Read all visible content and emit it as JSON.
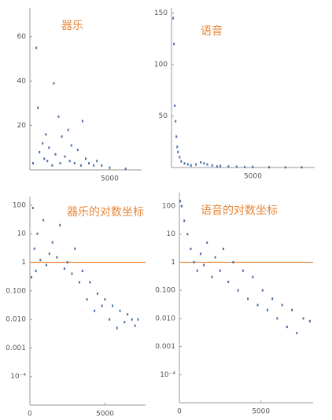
{
  "chart_data": [
    {
      "type": "scatter",
      "title": "器乐",
      "log_y": false,
      "color": "#4a6fa5",
      "x": [
        200,
        400,
        500,
        600,
        800,
        900,
        1000,
        1100,
        1200,
        1400,
        1500,
        1600,
        1800,
        1900,
        2000,
        2200,
        2400,
        2500,
        2600,
        2800,
        3000,
        3200,
        3300,
        3500,
        3700,
        4000,
        4200,
        4500,
        5000,
        6000
      ],
      "values": [
        3,
        55,
        28,
        8,
        12,
        5,
        16,
        4,
        10,
        2,
        39,
        7,
        24,
        3,
        15,
        6,
        18,
        4,
        11,
        3,
        9,
        2,
        22,
        5,
        3,
        2,
        4,
        2,
        1,
        0.5
      ],
      "xlim": [
        0,
        7000
      ],
      "xticks": [
        5000
      ],
      "ylim": [
        0,
        73
      ],
      "yticks": [
        20,
        40,
        60
      ]
    },
    {
      "type": "scatter",
      "title": "语音",
      "log_y": false,
      "color": "#4a6fa5",
      "x": [
        100,
        150,
        200,
        250,
        300,
        350,
        400,
        500,
        600,
        800,
        1000,
        1200,
        1500,
        1800,
        2000,
        2200,
        2500,
        2800,
        3000,
        3500,
        4000,
        4500,
        5000,
        6000,
        7000,
        8000
      ],
      "values": [
        145,
        120,
        60,
        45,
        30,
        20,
        15,
        10,
        6,
        4,
        3,
        2,
        3,
        5,
        4,
        3,
        2,
        1,
        1.5,
        1,
        0.8,
        0.5,
        0.4,
        0.3,
        0.2,
        0.2
      ],
      "xlim": [
        0,
        8800
      ],
      "xticks": [
        5000
      ],
      "ylim": [
        0,
        155
      ],
      "yticks": [
        50,
        100,
        150
      ]
    },
    {
      "type": "scatter",
      "title": "器乐的对数坐标",
      "log_y": true,
      "color": "#4a6fa5",
      "hline": 1,
      "hline_color": "#e8873a",
      "x": [
        100,
        200,
        300,
        400,
        500,
        700,
        900,
        1100,
        1300,
        1500,
        1800,
        2000,
        2300,
        2500,
        2800,
        3000,
        3300,
        3500,
        3800,
        4000,
        4300,
        4500,
        4800,
        5000,
        5300,
        5500,
        5800,
        6000,
        6300,
        6500,
        6800,
        7000,
        7200
      ],
      "values": [
        0.3,
        80,
        3,
        0.5,
        10,
        1.2,
        30,
        0.8,
        2,
        5,
        1.5,
        20,
        0.6,
        1,
        0.4,
        3,
        0.2,
        0.5,
        0.05,
        0.2,
        0.02,
        0.08,
        0.03,
        0.05,
        0.01,
        0.03,
        0.005,
        0.02,
        0.008,
        0.015,
        0.01,
        0.006,
        0.01
      ],
      "xlim": [
        0,
        7700
      ],
      "xticks": [
        0,
        5000
      ],
      "ylim": [
        1e-05,
        200
      ],
      "yticks": [
        100,
        10,
        1,
        {
          "value": 0.1,
          "label": "0.100"
        },
        {
          "value": 0.01,
          "label": "0.010"
        },
        0.001,
        {
          "value": 0.0001,
          "label": "10⁻⁴"
        }
      ]
    },
    {
      "type": "scatter",
      "title": "语音的对数坐标",
      "log_y": true,
      "color": "#4a6fa5",
      "hline": 1,
      "hline_color": "#e8873a",
      "x": [
        50,
        150,
        300,
        500,
        700,
        900,
        1100,
        1300,
        1500,
        1700,
        2000,
        2200,
        2500,
        2700,
        3000,
        3300,
        3600,
        3900,
        4200,
        4500,
        4800,
        5100,
        5400,
        5700,
        6000,
        6300,
        6600,
        6900,
        7200,
        7600,
        8000
      ],
      "values": [
        150,
        100,
        30,
        10,
        3,
        1,
        0.5,
        2,
        0.8,
        5,
        0.3,
        1.5,
        0.5,
        3,
        0.2,
        1,
        0.1,
        0.5,
        0.05,
        0.3,
        0.03,
        0.1,
        0.02,
        0.05,
        0.01,
        0.03,
        0.005,
        0.02,
        0.003,
        0.01,
        0.008
      ],
      "xlim": [
        0,
        8200
      ],
      "xticks": [
        0,
        5000
      ],
      "ylim": [
        1e-05,
        300
      ],
      "yticks": [
        100,
        10,
        1,
        {
          "value": 0.1,
          "label": "0.100"
        },
        {
          "value": 0.01,
          "label": "0.010"
        },
        0.001,
        {
          "value": 0.0001,
          "label": "10⁻⁴"
        }
      ]
    }
  ]
}
